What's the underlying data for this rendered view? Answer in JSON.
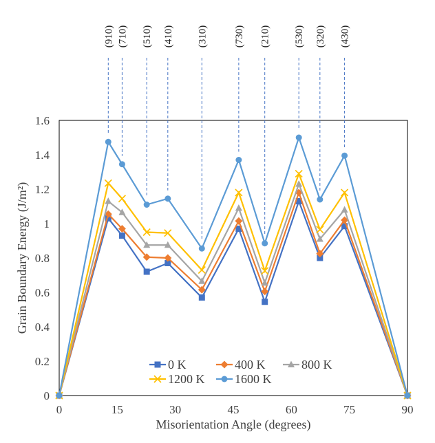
{
  "chart_data": {
    "type": "line",
    "title": "",
    "xlabel": "Misorientation Angle (degrees)",
    "ylabel": "Grain Boundary Energy (J/m²)",
    "xlim": [
      0,
      90
    ],
    "ylim": [
      0,
      1.6
    ],
    "xticks": [
      0,
      15,
      30,
      45,
      60,
      75,
      90
    ],
    "yticks": [
      0,
      0.2,
      0.4,
      0.6,
      0.8,
      1.0,
      1.2,
      1.4,
      1.6
    ],
    "x_tick_labels": [
      "0",
      "15",
      "30",
      "45",
      "60",
      "75",
      "90"
    ],
    "y_tick_labels": [
      "0",
      "0.2",
      "0.4",
      "0.6",
      "0.8",
      "1",
      "1.2",
      "1.4",
      "1.6"
    ],
    "grid": false,
    "legend_position": "bottom-center",
    "x": [
      0,
      12.68,
      16.26,
      22.62,
      28.07,
      36.87,
      46.4,
      53.13,
      61.93,
      67.38,
      73.74,
      90
    ],
    "annotations": [
      {
        "label": "(910)",
        "x": 12.68
      },
      {
        "label": "(710)",
        "x": 16.26
      },
      {
        "label": "(510)",
        "x": 22.62
      },
      {
        "label": "(410)",
        "x": 28.07
      },
      {
        "label": "(310)",
        "x": 36.87
      },
      {
        "label": "(730)",
        "x": 46.4
      },
      {
        "label": "(210)",
        "x": 53.13
      },
      {
        "label": "(530)",
        "x": 61.93
      },
      {
        "label": "(320)",
        "x": 67.38
      },
      {
        "label": "(430)",
        "x": 73.74
      }
    ],
    "series": [
      {
        "name": "0 K",
        "color": "#4472C4",
        "marker": "square",
        "values": [
          0,
          1.03,
          0.93,
          0.72,
          0.77,
          0.57,
          0.97,
          0.545,
          1.13,
          0.8,
          0.985,
          0
        ]
      },
      {
        "name": "400 K",
        "color": "#ED7D31",
        "marker": "diamond",
        "values": [
          0,
          1.055,
          0.97,
          0.805,
          0.8,
          0.615,
          1.015,
          0.605,
          1.18,
          0.825,
          1.02,
          0
        ]
      },
      {
        "name": "800 K",
        "color": "#A5A5A5",
        "marker": "triangle",
        "values": [
          0,
          1.13,
          1.065,
          0.875,
          0.875,
          0.665,
          1.09,
          0.655,
          1.23,
          0.91,
          1.08,
          0
        ]
      },
      {
        "name": "1200 K",
        "color": "#FFC000",
        "marker": "x",
        "values": [
          0,
          1.235,
          1.145,
          0.95,
          0.945,
          0.73,
          1.18,
          0.725,
          1.29,
          0.965,
          1.18,
          0
        ]
      },
      {
        "name": "1600 K",
        "color": "#5B9BD5",
        "marker": "circle",
        "values": [
          0,
          1.475,
          1.345,
          1.11,
          1.145,
          0.855,
          1.37,
          0.885,
          1.5,
          1.14,
          1.395,
          0
        ]
      }
    ]
  }
}
